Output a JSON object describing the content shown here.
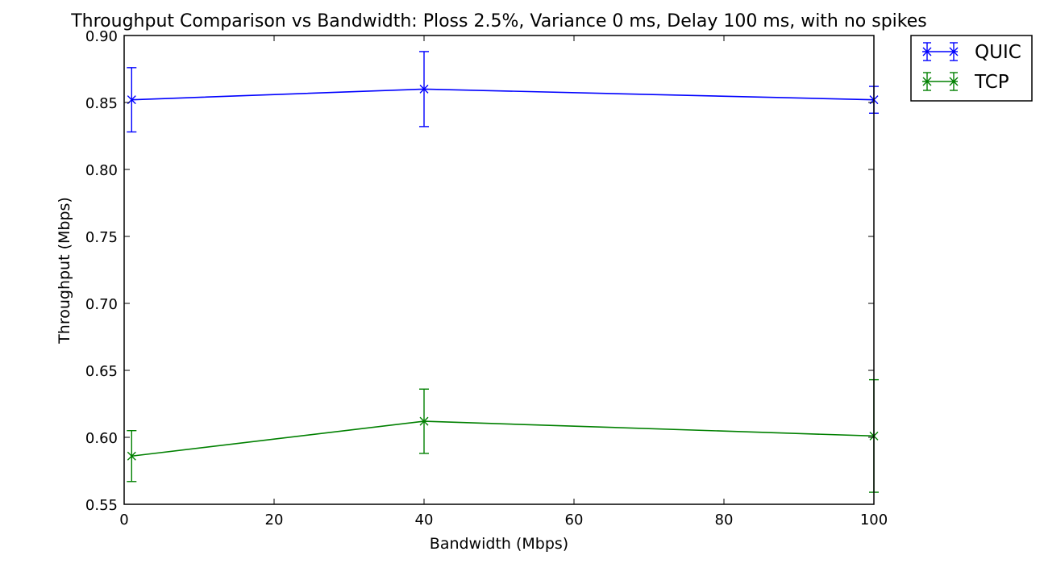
{
  "chart_data": {
    "type": "line",
    "title": "Throughput Comparison vs Bandwidth: Ploss 2.5%, Variance 0 ms, Delay 100 ms, with no spikes",
    "xlabel": "Bandwidth (Mbps)",
    "ylabel": "Throughput (Mbps)",
    "xlim": [
      0,
      100
    ],
    "ylim": [
      0.55,
      0.9
    ],
    "xticks": [
      "0",
      "20",
      "40",
      "60",
      "80",
      "100"
    ],
    "yticks": [
      "0.55",
      "0.60",
      "0.65",
      "0.70",
      "0.75",
      "0.80",
      "0.85",
      "0.90"
    ],
    "grid": false,
    "legend_position": "outside-top-right",
    "marker": "x",
    "error_bars": true,
    "series": [
      {
        "name": "QUIC",
        "color": "#0000ff",
        "x": [
          1,
          40,
          100
        ],
        "y": [
          0.852,
          0.86,
          0.852
        ],
        "yerr": [
          0.024,
          0.028,
          0.01
        ]
      },
      {
        "name": "TCP",
        "color": "#008000",
        "x": [
          1,
          40,
          100
        ],
        "y": [
          0.586,
          0.612,
          0.601
        ],
        "yerr": [
          0.019,
          0.024,
          0.042
        ]
      }
    ]
  }
}
